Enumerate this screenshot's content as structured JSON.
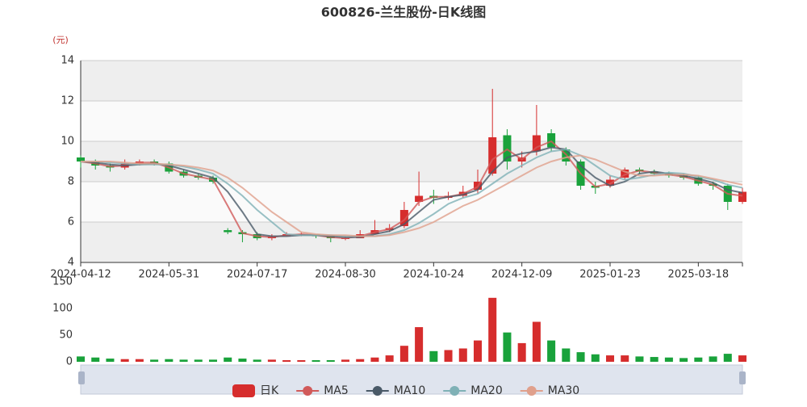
{
  "chart_data": {
    "type": "candlestick",
    "title": "600826-兰生股份-日K线图",
    "unit": "(元)",
    "categories": [
      "2024-04-12",
      null,
      null,
      null,
      null,
      null,
      "2024-05-31",
      null,
      null,
      null,
      null,
      null,
      "2024-07-17",
      null,
      null,
      null,
      null,
      null,
      "2024-08-30",
      null,
      null,
      null,
      null,
      null,
      "2024-10-24",
      null,
      null,
      null,
      null,
      null,
      "2024-12-09",
      null,
      null,
      null,
      null,
      null,
      "2025-01-23",
      null,
      null,
      null,
      null,
      null,
      "2025-03-18",
      null,
      null,
      null
    ],
    "candles": {
      "name": "日K",
      "up_color": "#d62d2d",
      "down_color": "#19a23b",
      "values": [
        [
          9.2,
          9.0,
          8.7,
          9.3
        ],
        [
          9.0,
          8.8,
          8.6,
          9.1
        ],
        [
          8.8,
          8.7,
          8.5,
          8.9
        ],
        [
          8.7,
          8.9,
          8.6,
          9.1
        ],
        [
          8.9,
          9.0,
          8.8,
          9.1
        ],
        [
          9.0,
          8.9,
          8.8,
          9.1
        ],
        [
          8.9,
          8.5,
          8.4,
          9.0
        ],
        [
          8.5,
          8.3,
          8.2,
          8.6
        ],
        [
          8.3,
          8.2,
          8.1,
          8.4
        ],
        [
          8.2,
          8.0,
          7.9,
          8.3
        ],
        [
          5.6,
          5.5,
          5.4,
          5.7
        ],
        [
          5.5,
          5.4,
          5.0,
          5.6
        ],
        [
          5.4,
          5.2,
          5.1,
          5.5
        ],
        [
          5.2,
          5.3,
          5.1,
          5.4
        ],
        [
          5.3,
          5.4,
          5.3,
          5.5
        ],
        [
          5.4,
          5.4,
          5.3,
          5.5
        ],
        [
          5.4,
          5.3,
          5.2,
          5.4
        ],
        [
          5.3,
          5.2,
          5.0,
          5.3
        ],
        [
          5.2,
          5.2,
          5.1,
          5.3
        ],
        [
          5.2,
          5.4,
          5.2,
          5.6
        ],
        [
          5.4,
          5.6,
          5.4,
          6.1
        ],
        [
          5.6,
          5.7,
          5.5,
          5.9
        ],
        [
          5.8,
          6.6,
          5.7,
          7.0
        ],
        [
          7.0,
          7.3,
          6.8,
          8.5
        ],
        [
          7.3,
          7.2,
          6.9,
          7.6
        ],
        [
          7.2,
          7.3,
          7.1,
          7.5
        ],
        [
          7.3,
          7.5,
          7.2,
          7.8
        ],
        [
          7.6,
          8.0,
          7.4,
          8.6
        ],
        [
          8.4,
          10.2,
          8.3,
          12.6
        ],
        [
          10.3,
          9.0,
          8.6,
          10.6
        ],
        [
          9.0,
          9.2,
          8.7,
          9.5
        ],
        [
          9.5,
          10.3,
          9.3,
          11.8
        ],
        [
          10.4,
          9.7,
          9.5,
          10.6
        ],
        [
          9.6,
          9.0,
          8.8,
          9.7
        ],
        [
          9.0,
          7.8,
          7.6,
          9.1
        ],
        [
          7.8,
          7.7,
          7.4,
          8.0
        ],
        [
          7.8,
          8.1,
          7.7,
          8.3
        ],
        [
          8.2,
          8.6,
          8.1,
          8.7
        ],
        [
          8.6,
          8.5,
          8.4,
          8.7
        ],
        [
          8.5,
          8.4,
          8.3,
          8.6
        ],
        [
          8.4,
          8.3,
          8.2,
          8.5
        ],
        [
          8.3,
          8.2,
          8.1,
          8.4
        ],
        [
          8.2,
          7.9,
          7.8,
          8.3
        ],
        [
          7.9,
          7.8,
          7.6,
          8.0
        ],
        [
          7.8,
          7.0,
          6.6,
          7.9
        ],
        [
          7.0,
          7.5,
          6.9,
          7.7
        ]
      ]
    },
    "series": [
      {
        "name": "MA5",
        "color": "#d15a5a",
        "values": [
          9.0,
          8.9,
          8.75,
          8.8,
          8.95,
          8.95,
          8.7,
          8.4,
          8.25,
          8.1,
          6.8,
          5.45,
          5.3,
          5.25,
          5.35,
          5.4,
          5.35,
          5.25,
          5.2,
          5.3,
          5.5,
          5.65,
          6.1,
          7.0,
          7.25,
          7.25,
          7.4,
          7.75,
          9.1,
          9.6,
          9.1,
          9.7,
          10.0,
          9.35,
          8.4,
          7.75,
          7.9,
          8.35,
          8.55,
          8.45,
          8.35,
          8.25,
          8.05,
          7.85,
          7.4,
          7.3
        ]
      },
      {
        "name": "MA10",
        "color": "#4a5a68",
        "values": [
          9.0,
          8.95,
          8.85,
          8.8,
          8.85,
          8.9,
          8.8,
          8.6,
          8.4,
          8.2,
          7.5,
          6.5,
          5.4,
          5.3,
          5.3,
          5.35,
          5.35,
          5.3,
          5.25,
          5.25,
          5.4,
          5.55,
          5.9,
          6.5,
          7.1,
          7.25,
          7.35,
          7.6,
          8.5,
          9.2,
          9.4,
          9.5,
          9.7,
          9.6,
          8.8,
          8.2,
          7.8,
          8.0,
          8.4,
          8.5,
          8.4,
          8.3,
          8.15,
          7.95,
          7.6,
          7.45
        ]
      },
      {
        "name": "MA20",
        "color": "#7fb1b6",
        "values": [
          9.0,
          9.0,
          8.95,
          8.9,
          8.85,
          8.85,
          8.85,
          8.75,
          8.6,
          8.4,
          7.9,
          7.3,
          6.6,
          6.0,
          5.4,
          5.35,
          5.35,
          5.35,
          5.3,
          5.3,
          5.3,
          5.4,
          5.6,
          5.95,
          6.4,
          6.9,
          7.2,
          7.4,
          7.9,
          8.4,
          8.8,
          9.2,
          9.5,
          9.6,
          9.3,
          8.8,
          8.3,
          8.1,
          8.2,
          8.35,
          8.45,
          8.4,
          8.25,
          8.1,
          7.85,
          7.7
        ]
      },
      {
        "name": "MA30",
        "color": "#e0a08c",
        "values": [
          9.0,
          9.0,
          9.0,
          8.95,
          8.9,
          8.9,
          8.85,
          8.8,
          8.7,
          8.55,
          8.2,
          7.7,
          7.1,
          6.5,
          6.0,
          5.5,
          5.4,
          5.35,
          5.35,
          5.3,
          5.3,
          5.35,
          5.5,
          5.7,
          6.0,
          6.4,
          6.8,
          7.1,
          7.5,
          7.9,
          8.3,
          8.7,
          9.0,
          9.2,
          9.3,
          9.1,
          8.8,
          8.5,
          8.3,
          8.3,
          8.35,
          8.35,
          8.3,
          8.15,
          8.0,
          7.85
        ]
      }
    ],
    "volume": {
      "values": [
        10,
        8,
        6,
        5,
        5,
        4,
        5,
        4,
        4,
        4,
        8,
        6,
        4,
        4,
        3,
        3,
        3,
        3,
        4,
        5,
        8,
        12,
        30,
        65,
        20,
        22,
        25,
        40,
        120,
        55,
        35,
        75,
        40,
        25,
        18,
        14,
        12,
        12,
        10,
        9,
        8,
        7,
        8,
        10,
        15,
        12
      ]
    },
    "ylim": [
      4,
      14
    ],
    "yticks": [
      4,
      6,
      8,
      10,
      12,
      14
    ],
    "volume_ylim": [
      0,
      150
    ],
    "volume_yticks": [
      0,
      50,
      100,
      150
    ],
    "grid": true
  }
}
